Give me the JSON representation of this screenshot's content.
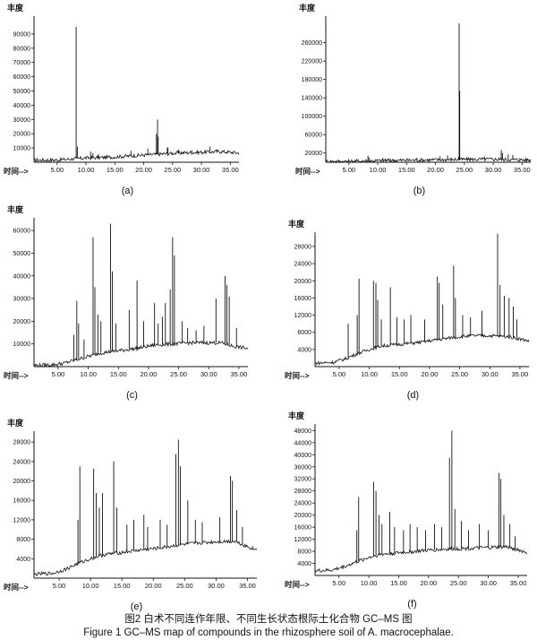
{
  "figure": {
    "caption_cn": "图2 白术不同连作年限、不同生长状态根际土化合物 GC–MS 图",
    "caption_en": "Figure 1 GC–MS map of compounds in the rhizosphere soil of A. macrocephalae."
  },
  "colors": {
    "trace": "#111111",
    "axis": "#111111",
    "background": "#ffffff"
  },
  "chart_data": [
    {
      "type": "line",
      "panel_label": "(a)",
      "ylabel": "丰度",
      "xlabel": "时间-->",
      "xlim": [
        1,
        36.5
      ],
      "ylim": [
        0,
        100000
      ],
      "x_ticks": [
        "5.00",
        "10.00",
        "15.00",
        "20.00",
        "25.00",
        "30.00",
        "35.00"
      ],
      "y_ticks": [
        "10000",
        "20000",
        "30000",
        "40000",
        "50000",
        "60000",
        "70000",
        "80000",
        "90000"
      ],
      "baseline": [
        [
          1,
          1500
        ],
        [
          5,
          1600
        ],
        [
          8,
          2500
        ],
        [
          10,
          3000
        ],
        [
          14,
          3500
        ],
        [
          18,
          4500
        ],
        [
          22,
          5500
        ],
        [
          26,
          6500
        ],
        [
          30,
          7000
        ],
        [
          33,
          7500
        ],
        [
          35,
          7000
        ],
        [
          36.5,
          6500
        ]
      ],
      "peaks": [
        [
          8.3,
          95000
        ],
        [
          8.5,
          11000
        ],
        [
          22.4,
          30000
        ],
        [
          22.5,
          18000
        ],
        [
          22.2,
          20000
        ],
        [
          20.7,
          9500
        ],
        [
          17.8,
          8000
        ],
        [
          10.8,
          7500
        ],
        [
          11.2,
          6500
        ],
        [
          12.1,
          5500
        ],
        [
          24.1,
          10500
        ],
        [
          24.2,
          10000
        ],
        [
          26.0,
          9000
        ],
        [
          28.3,
          8500
        ],
        [
          31.5,
          11000
        ],
        [
          32.7,
          9000
        ],
        [
          33.5,
          8000
        ],
        [
          34.4,
          6500
        ],
        [
          26.5,
          7500
        ],
        [
          29.5,
          7500
        ]
      ]
    },
    {
      "type": "line",
      "panel_label": "(b)",
      "ylabel": "丰度",
      "xlabel": "时间-->",
      "xlim": [
        1,
        36.5
      ],
      "ylim": [
        0,
        310000
      ],
      "x_ticks": [
        "5.00",
        "10.00",
        "15.00",
        "20.00",
        "25.00",
        "30.00",
        "35.00"
      ],
      "y_ticks": [
        "20000",
        "60000",
        "100000",
        "140000",
        "180000",
        "220000",
        "260000"
      ],
      "baseline": [
        [
          1,
          2000
        ],
        [
          5,
          2000
        ],
        [
          8,
          3000
        ],
        [
          12,
          4000
        ],
        [
          18,
          5000
        ],
        [
          24,
          6000
        ],
        [
          30,
          6500
        ],
        [
          36.5,
          5000
        ]
      ],
      "peaks": [
        [
          24.1,
          302000
        ],
        [
          24.2,
          155000
        ],
        [
          8.3,
          14000
        ],
        [
          8.5,
          10000
        ],
        [
          10.9,
          9000
        ],
        [
          11.3,
          8000
        ],
        [
          12.2,
          7500
        ],
        [
          16.8,
          9500
        ],
        [
          20.8,
          13000
        ],
        [
          22.1,
          15000
        ],
        [
          24.0,
          12000
        ],
        [
          26.0,
          10000
        ],
        [
          28.5,
          12000
        ],
        [
          31.0,
          11000
        ],
        [
          31.4,
          27000
        ],
        [
          31.6,
          20000
        ],
        [
          32.6,
          17000
        ],
        [
          33.4,
          16000
        ],
        [
          34.5,
          9000
        ],
        [
          14.0,
          7000
        ]
      ]
    },
    {
      "type": "line",
      "panel_label": "(c)",
      "ylabel": "丰度",
      "xlabel": "时间-->",
      "xlim": [
        1,
        36.5
      ],
      "ylim": [
        0,
        64000
      ],
      "x_ticks": [
        "5.00",
        "10.00",
        "15.00",
        "20.00",
        "25.00",
        "30.00",
        "35.00"
      ],
      "y_ticks": [
        "10000",
        "20000",
        "30000",
        "40000",
        "50000",
        "60000"
      ],
      "baseline": [
        [
          1,
          600
        ],
        [
          4,
          800
        ],
        [
          6,
          1500
        ],
        [
          8,
          3000
        ],
        [
          10,
          4500
        ],
        [
          12,
          6000
        ],
        [
          15,
          7000
        ],
        [
          18,
          8000
        ],
        [
          21,
          9500
        ],
        [
          24,
          10000
        ],
        [
          27,
          10500
        ],
        [
          30,
          10500
        ],
        [
          32,
          10500
        ],
        [
          34,
          9000
        ],
        [
          36.5,
          8000
        ]
      ],
      "peaks": [
        [
          8.1,
          29000
        ],
        [
          8.4,
          19000
        ],
        [
          10.8,
          57000
        ],
        [
          11.1,
          35000
        ],
        [
          11.6,
          23000
        ],
        [
          12.1,
          20000
        ],
        [
          13.7,
          63000
        ],
        [
          14.0,
          42000
        ],
        [
          14.6,
          19000
        ],
        [
          16.8,
          25000
        ],
        [
          18.1,
          38000
        ],
        [
          19.2,
          20000
        ],
        [
          21.0,
          28000
        ],
        [
          21.6,
          19000
        ],
        [
          22.3,
          22000
        ],
        [
          22.8,
          28000
        ],
        [
          23.6,
          34000
        ],
        [
          24.0,
          57000
        ],
        [
          24.3,
          49000
        ],
        [
          25.6,
          20000
        ],
        [
          26.5,
          17000
        ],
        [
          27.9,
          16000
        ],
        [
          29.2,
          18000
        ],
        [
          31.2,
          30000
        ],
        [
          32.7,
          40000
        ],
        [
          33.0,
          36000
        ],
        [
          33.4,
          31000
        ],
        [
          34.6,
          17000
        ],
        [
          7.6,
          14000
        ],
        [
          9.3,
          12000
        ]
      ]
    },
    {
      "type": "line",
      "panel_label": "(d)",
      "ylabel": "丰度",
      "xlabel": "时间-->",
      "xlim": [
        1,
        36.5
      ],
      "ylim": [
        0,
        30500
      ],
      "x_ticks": [
        "5.00",
        "10.00",
        "15.00",
        "20.00",
        "25.00",
        "30.00",
        "35.00"
      ],
      "y_ticks": [
        "4000",
        "8000",
        "12000",
        "16000",
        "20000",
        "24000",
        "28000"
      ],
      "baseline": [
        [
          1,
          800
        ],
        [
          4,
          1000
        ],
        [
          6,
          1800
        ],
        [
          8,
          3000
        ],
        [
          10,
          4000
        ],
        [
          12,
          4800
        ],
        [
          15,
          5200
        ],
        [
          18,
          5600
        ],
        [
          21,
          6200
        ],
        [
          24,
          6800
        ],
        [
          27,
          7200
        ],
        [
          30,
          7200
        ],
        [
          33,
          7000
        ],
        [
          36.5,
          6000
        ]
      ],
      "peaks": [
        [
          8.3,
          20500
        ],
        [
          8.0,
          12000
        ],
        [
          10.7,
          20000
        ],
        [
          11.1,
          19500
        ],
        [
          11.4,
          15500
        ],
        [
          12.0,
          11000
        ],
        [
          13.5,
          18500
        ],
        [
          14.6,
          11500
        ],
        [
          15.8,
          11000
        ],
        [
          16.9,
          12000
        ],
        [
          19.2,
          11000
        ],
        [
          21.3,
          21000
        ],
        [
          21.6,
          19500
        ],
        [
          22.2,
          14500
        ],
        [
          24.0,
          23500
        ],
        [
          24.3,
          16000
        ],
        [
          25.5,
          12000
        ],
        [
          26.8,
          11500
        ],
        [
          28.7,
          13000
        ],
        [
          31.3,
          31000
        ],
        [
          31.7,
          19000
        ],
        [
          32.4,
          16500
        ],
        [
          33.2,
          16000
        ],
        [
          33.9,
          14000
        ],
        [
          34.5,
          11000
        ],
        [
          6.5,
          10000
        ]
      ]
    },
    {
      "type": "line",
      "panel_label": "(e)",
      "ylabel": "丰度",
      "xlabel": "时间-->",
      "xlim": [
        1,
        36.5
      ],
      "ylim": [
        0,
        29500
      ],
      "x_ticks": [
        "5.00",
        "10.00",
        "15.00",
        "20.00",
        "25.00",
        "30.00",
        "35.00"
      ],
      "y_ticks": [
        "4000",
        "8000",
        "12000",
        "16000",
        "20000",
        "24000",
        "28000"
      ],
      "baseline": [
        [
          1,
          800
        ],
        [
          4,
          1000
        ],
        [
          6,
          1800
        ],
        [
          8,
          3000
        ],
        [
          10,
          4000
        ],
        [
          12,
          4800
        ],
        [
          15,
          5300
        ],
        [
          18,
          5800
        ],
        [
          21,
          6200
        ],
        [
          24,
          6800
        ],
        [
          27,
          7200
        ],
        [
          30,
          7500
        ],
        [
          33,
          7600
        ],
        [
          35,
          6500
        ],
        [
          36.5,
          5800
        ]
      ],
      "peaks": [
        [
          8.3,
          23000
        ],
        [
          8.0,
          12000
        ],
        [
          10.5,
          22500
        ],
        [
          10.9,
          17500
        ],
        [
          11.4,
          14500
        ],
        [
          11.9,
          17500
        ],
        [
          13.7,
          24000
        ],
        [
          14.2,
          14500
        ],
        [
          15.8,
          11000
        ],
        [
          16.9,
          12000
        ],
        [
          18.5,
          13000
        ],
        [
          19.1,
          10500
        ],
        [
          21.1,
          12000
        ],
        [
          22.2,
          11000
        ],
        [
          23.6,
          25500
        ],
        [
          24.0,
          28500
        ],
        [
          24.3,
          23000
        ],
        [
          25.5,
          16000
        ],
        [
          26.7,
          12000
        ],
        [
          27.8,
          11500
        ],
        [
          30.6,
          12500
        ],
        [
          32.3,
          21000
        ],
        [
          32.6,
          20000
        ],
        [
          33.3,
          14000
        ],
        [
          34.2,
          10500
        ]
      ]
    },
    {
      "type": "line",
      "panel_label": "(f)",
      "ylabel": "丰度",
      "xlabel": "时间-->",
      "xlim": [
        1,
        36.5
      ],
      "ylim": [
        0,
        49000
      ],
      "x_ticks": [
        "5.00",
        "10.00",
        "15.00",
        "20.00",
        "25.00",
        "30.00",
        "35.00"
      ],
      "y_ticks": [
        "4000",
        "8000",
        "12000",
        "16000",
        "20000",
        "24000",
        "28000",
        "32000",
        "36000",
        "40000",
        "44000",
        "48000"
      ],
      "baseline": [
        [
          1,
          1500
        ],
        [
          4,
          1800
        ],
        [
          6,
          3000
        ],
        [
          8,
          4500
        ],
        [
          10,
          6000
        ],
        [
          12,
          7000
        ],
        [
          15,
          7500
        ],
        [
          18,
          8000
        ],
        [
          21,
          8500
        ],
        [
          24,
          8800
        ],
        [
          27,
          9000
        ],
        [
          30,
          9200
        ],
        [
          33,
          9500
        ],
        [
          35,
          8500
        ],
        [
          36.5,
          7500
        ]
      ],
      "peaks": [
        [
          8.3,
          26000
        ],
        [
          8.0,
          15000
        ],
        [
          10.8,
          31000
        ],
        [
          11.2,
          28000
        ],
        [
          11.7,
          20000
        ],
        [
          12.2,
          17000
        ],
        [
          13.5,
          21000
        ],
        [
          14.3,
          16000
        ],
        [
          15.8,
          15000
        ],
        [
          16.9,
          17000
        ],
        [
          18.1,
          16000
        ],
        [
          19.5,
          15000
        ],
        [
          21.0,
          17000
        ],
        [
          22.2,
          16000
        ],
        [
          23.5,
          39000
        ],
        [
          23.9,
          48000
        ],
        [
          24.4,
          22000
        ],
        [
          25.5,
          18000
        ],
        [
          26.7,
          15000
        ],
        [
          28.5,
          17000
        ],
        [
          30.0,
          15000
        ],
        [
          31.8,
          34000
        ],
        [
          32.1,
          32000
        ],
        [
          32.6,
          20000
        ],
        [
          33.6,
          17000
        ],
        [
          34.5,
          13000
        ]
      ]
    }
  ]
}
